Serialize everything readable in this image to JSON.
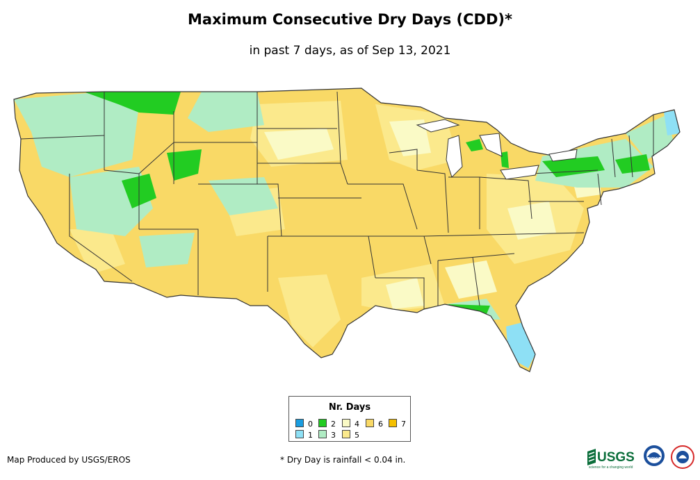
{
  "title": "Maximum Consecutive Dry Days (CDD)*",
  "subtitle": "in past 7 days, as of Sep 13, 2021",
  "legend": {
    "title": "Nr. Days",
    "items": [
      {
        "label": "0",
        "color": "#1a9de0"
      },
      {
        "label": "1",
        "color": "#8ee0f5"
      },
      {
        "label": "2",
        "color": "#22cc22"
      },
      {
        "label": "3",
        "color": "#b0ecc4"
      },
      {
        "label": "4",
        "color": "#fafac6"
      },
      {
        "label": "5",
        "color": "#fbe98c"
      },
      {
        "label": "6",
        "color": "#f9d966"
      },
      {
        "label": "7",
        "color": "#f5c000"
      }
    ]
  },
  "credit": "Map Produced by USGS/EROS",
  "footnote": "* Dry Day is rainfall < 0.04 in.",
  "logos": {
    "usgs_wordmark": "USGS",
    "usgs_tagline": "science for a changing world",
    "noaa_text": "NOAA"
  },
  "map": {
    "region": "Contiguous United States",
    "background_color": "#f9d966",
    "state_border_color": "#333333"
  }
}
